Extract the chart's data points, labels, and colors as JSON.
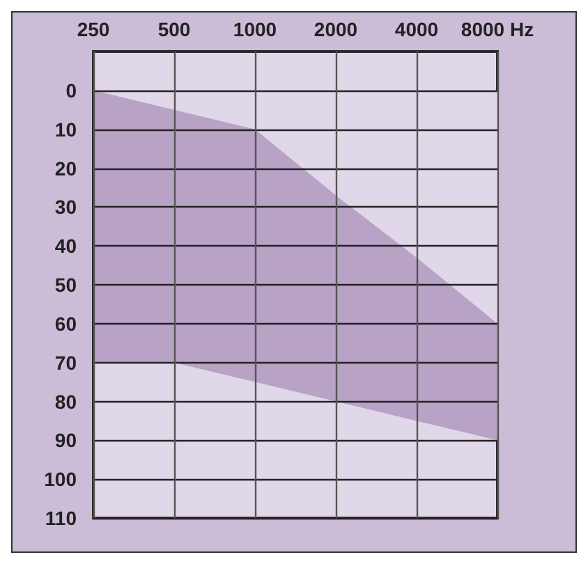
{
  "chart_data": {
    "type": "area",
    "log": "x",
    "xlim": [
      250,
      8000
    ],
    "xticks": [
      250,
      500,
      1000,
      2000,
      4000,
      {
        "value": 8000,
        "label": "8000 Hz"
      }
    ],
    "ylim": [
      110,
      -10
    ],
    "yticks": [
      0,
      10,
      20,
      30,
      40,
      50,
      60,
      70,
      80,
      90,
      100,
      110
    ],
    "grid": true,
    "stacked": true,
    "series": [
      {
        "color": "#e0d8e8",
        "x": [
          250,
          500,
          1000,
          2000,
          4000,
          8000
        ],
        "values": [
          0,
          5,
          10,
          27,
          43,
          60
        ]
      },
      {
        "color": "#b8a2c6",
        "x": [
          250,
          500,
          1000,
          2000,
          4000,
          8000
        ],
        "values": [
          70,
          65,
          65,
          53,
          42,
          30
        ]
      }
    ]
  }
}
